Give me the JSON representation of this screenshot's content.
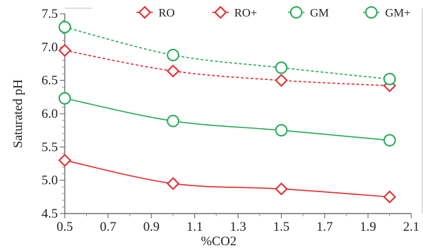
{
  "chart_data": {
    "type": "line",
    "title": "",
    "xlabel": "%CO2",
    "ylabel": "Saturated pH",
    "x": [
      0.5,
      1.0,
      1.5,
      2.0
    ],
    "xlim": [
      0.5,
      2.1
    ],
    "ylim": [
      4.5,
      7.5
    ],
    "x_ticks": [
      "0.5",
      "0.7",
      "0.9",
      "1.1",
      "1.3",
      "1.5",
      "1.7",
      "1.9",
      "2.1"
    ],
    "y_ticks": [
      "4.5",
      "5.0",
      "5.5",
      "6.0",
      "6.5",
      "7.0",
      "7.5"
    ],
    "grid": false,
    "legend_position": "top",
    "series": [
      {
        "name": "RO",
        "values": [
          5.3,
          4.95,
          4.87,
          4.75
        ],
        "color": "#e8262b",
        "marker": "diamond",
        "line_style": "solid"
      },
      {
        "name": "RO+",
        "values": [
          6.95,
          6.64,
          6.5,
          6.42
        ],
        "color": "#e8262b",
        "marker": "diamond",
        "line_style": "dashed"
      },
      {
        "name": "GM",
        "values": [
          6.23,
          5.89,
          5.75,
          5.6
        ],
        "color": "#22aa55",
        "marker": "circle",
        "line_style": "solid"
      },
      {
        "name": "GM+",
        "values": [
          7.3,
          6.88,
          6.69,
          6.52
        ],
        "color": "#22aa55",
        "marker": "circle",
        "line_style": "dashed"
      }
    ]
  }
}
